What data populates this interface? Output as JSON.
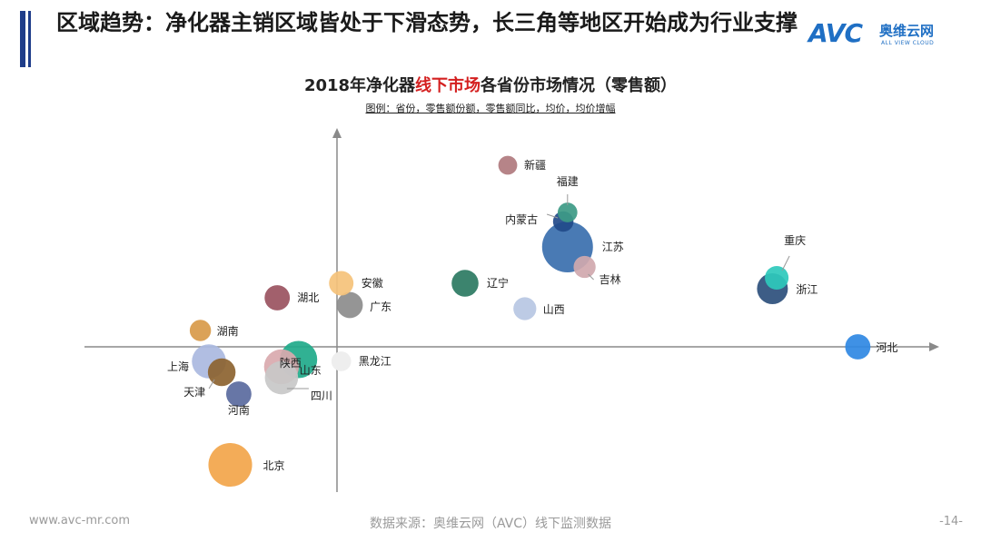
{
  "headline": "区域趋势：净化器主销区域皆处于下滑态势，长三角等地区开始成为行业支撑",
  "logo": {
    "text": "AVC",
    "cn": "奥维云网",
    "en": "ALL VIEW CLOUD"
  },
  "chart_data": {
    "type": "scatter",
    "title_parts": [
      "2018年净化器",
      "线下市场",
      "各省份市场情况（零售额）"
    ],
    "legend_note": "图例：省份，零售额份额，零售额同比，均价，均价增幅",
    "xlabel": "",
    "ylabel": "",
    "points": [
      {
        "name": "新疆",
        "x": 0.4,
        "y": 1.0,
        "size": 0.2,
        "color": "#b07a7e"
      },
      {
        "name": "福建",
        "x": 0.54,
        "y": 0.74,
        "size": 0.22,
        "color": "#3d9a86"
      },
      {
        "name": "内蒙古",
        "x": 0.53,
        "y": 0.69,
        "size": 0.24,
        "color": "#224a8a"
      },
      {
        "name": "江苏",
        "x": 0.54,
        "y": 0.55,
        "size": 1.0,
        "color": "#3a6fae"
      },
      {
        "name": "吉林",
        "x": 0.58,
        "y": 0.44,
        "size": 0.28,
        "color": "#d0a8ae"
      },
      {
        "name": "重庆",
        "x": 1.03,
        "y": 0.38,
        "size": 0.32,
        "color": "#2ec9bc"
      },
      {
        "name": "浙江",
        "x": 1.02,
        "y": 0.32,
        "size": 0.5,
        "color": "#2d4f7c"
      },
      {
        "name": "辽宁",
        "x": 0.3,
        "y": 0.35,
        "size": 0.4,
        "color": "#2b7a62"
      },
      {
        "name": "山西",
        "x": 0.44,
        "y": 0.21,
        "size": 0.3,
        "color": "#b7c7e3"
      },
      {
        "name": "安徽",
        "x": 0.01,
        "y": 0.35,
        "size": 0.34,
        "color": "#f5c27a"
      },
      {
        "name": "湖北",
        "x": -0.14,
        "y": 0.27,
        "size": 0.36,
        "color": "#9a5260"
      },
      {
        "name": "广东",
        "x": 0.03,
        "y": 0.23,
        "size": 0.38,
        "color": "#8c8c8c"
      },
      {
        "name": "湖南",
        "x": -0.32,
        "y": 0.09,
        "size": 0.26,
        "color": "#d89a4a"
      },
      {
        "name": "河北",
        "x": 1.22,
        "y": 0.0,
        "size": 0.36,
        "color": "#2f88e3"
      },
      {
        "name": "上海",
        "x": -0.3,
        "y": -0.08,
        "size": 0.58,
        "color": "#aab9e0"
      },
      {
        "name": "天津",
        "x": -0.27,
        "y": -0.14,
        "size": 0.42,
        "color": "#8c6330"
      },
      {
        "name": "河南",
        "x": -0.23,
        "y": -0.26,
        "size": 0.36,
        "color": "#5a6a9e"
      },
      {
        "name": "山东",
        "x": -0.09,
        "y": -0.07,
        "size": 0.66,
        "color": "#1faa8a"
      },
      {
        "name": "陕西",
        "x": -0.13,
        "y": -0.11,
        "size": 0.6,
        "color": "#d9a9ae"
      },
      {
        "name": "四川",
        "x": -0.13,
        "y": -0.17,
        "size": 0.56,
        "color": "#c8c8c8"
      },
      {
        "name": "黑龙江",
        "x": 0.01,
        "y": -0.08,
        "size": 0.22,
        "color": "#eeeeee"
      },
      {
        "name": "北京",
        "x": -0.25,
        "y": -0.65,
        "size": 0.82,
        "color": "#f2a54a"
      }
    ]
  },
  "footer": {
    "website": "www.avc-mr.com",
    "source": "数据来源：奥维云网（AVC）线下监测数据",
    "page": "-14-"
  }
}
